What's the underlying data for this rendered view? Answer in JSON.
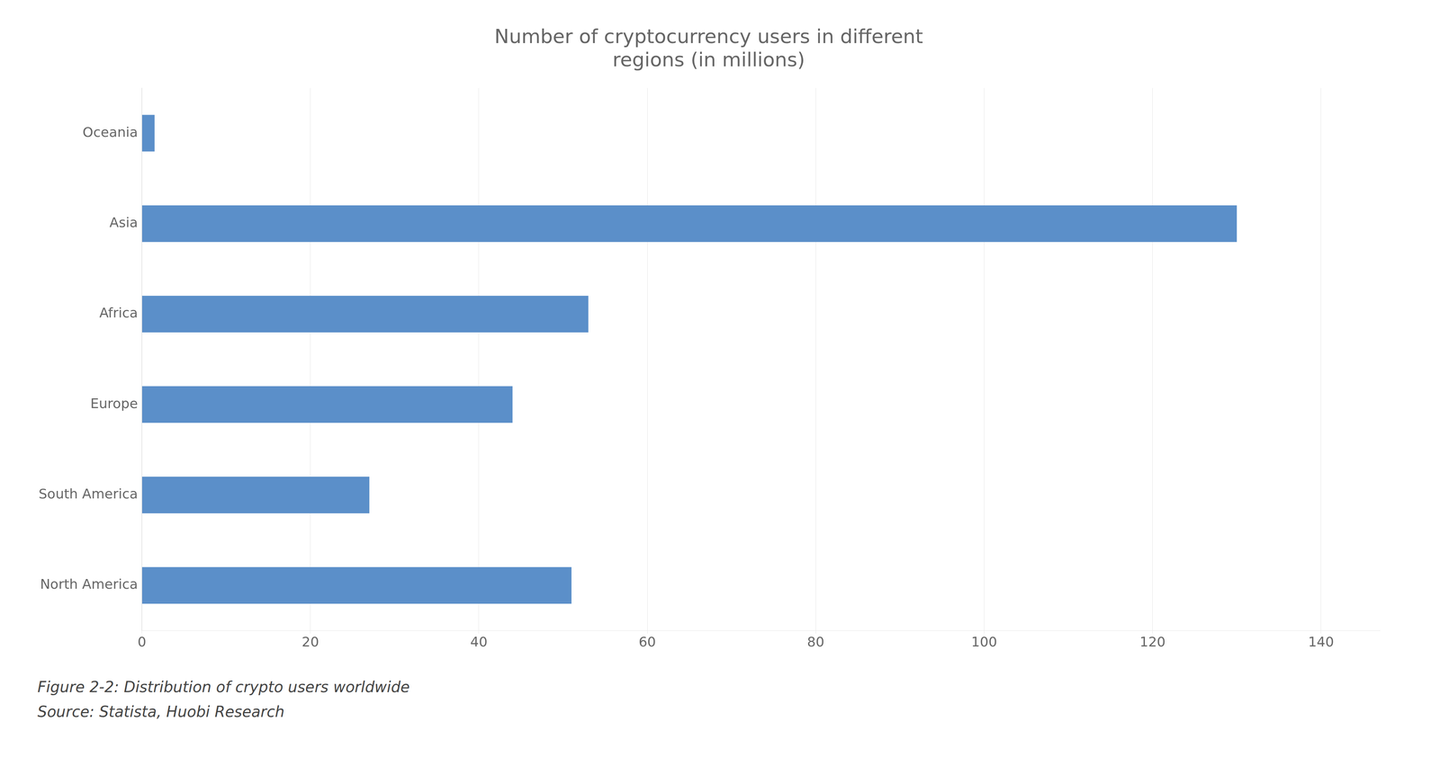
{
  "chart_data": {
    "type": "bar",
    "orientation": "horizontal",
    "title": "Number of cryptocurrency users in different\nregions (in millions)",
    "annotations": [
      "Figure 2-2:  Distribution of crypto users worldwide",
      "Source: Statista, Huobi Research"
    ],
    "categories": [
      "North America",
      "South America",
      "Europe",
      "Africa",
      "Asia",
      "Oceania"
    ],
    "values": [
      51,
      27,
      44,
      53,
      130,
      1.5
    ],
    "color": "#5b8fc9",
    "xlim": [
      0,
      147
    ],
    "xticks": [
      0,
      20,
      40,
      60,
      80,
      100,
      120,
      140
    ],
    "grid": true
  }
}
